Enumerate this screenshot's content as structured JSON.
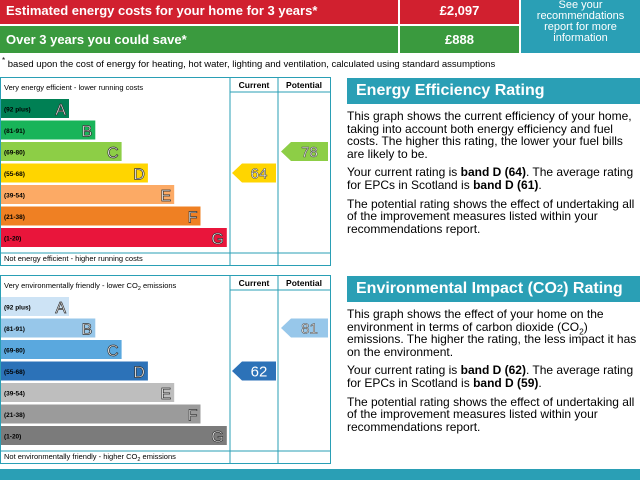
{
  "costs": {
    "rows": [
      {
        "label": "Estimated energy costs for your home for 3 years*",
        "value": "£2,097",
        "color": "#d1202f"
      },
      {
        "label": "Over 3 years you could save*",
        "value": "£888",
        "color": "#3a9a3e"
      }
    ],
    "note": "See your recommendations report for more information",
    "note_color": "#2a9fb5"
  },
  "footnote": {
    "mark": "*",
    "text": "based upon the cost of energy for heating, hot water, lighting and ventilation, calculated using standard assumptions"
  },
  "ratings": [
    {
      "top_label": [
        {
          "text": "Very energy efficient - lower running costs"
        }
      ],
      "bottom_label": [
        {
          "text": "Not energy efficient - higher running costs"
        }
      ],
      "column_headers": [
        "Current",
        "Potential"
      ],
      "bands": [
        {
          "range": "(92 plus)",
          "letter": "A",
          "color": "#008054"
        },
        {
          "range": "(81-91)",
          "letter": "B",
          "color": "#19b459"
        },
        {
          "range": "(69-80)",
          "letter": "C",
          "color": "#8dce46"
        },
        {
          "range": "(55-68)",
          "letter": "D",
          "color": "#ffd500"
        },
        {
          "range": "(39-54)",
          "letter": "E",
          "color": "#fcaa65"
        },
        {
          "range": "(21-38)",
          "letter": "F",
          "color": "#ef8023"
        },
        {
          "range": "(1-20)",
          "letter": "G",
          "color": "#e9153b"
        }
      ],
      "current": 64,
      "potential": 78,
      "title": [
        {
          "text": "Energy Efficiency Rating"
        }
      ],
      "paragraphs": [
        [
          {
            "text": "This graph shows the current efficiency of your home, taking into account both energy efficiency and fuel costs. The higher this rating, the lower your fuel bills are likely to be."
          }
        ],
        [
          {
            "text": "Your current rating is "
          },
          {
            "text": "band D (64)",
            "bold": true
          },
          {
            "text": ". The average rating for EPCs in Scotland is "
          },
          {
            "text": "band D (61)",
            "bold": true
          },
          {
            "text": "."
          }
        ],
        [
          {
            "text": "The potential rating shows the effect of undertaking all of the improvement measures listed within your recommendations report."
          }
        ]
      ]
    },
    {
      "top_label": [
        {
          "text": "Very environmentally friendly - lower CO"
        },
        {
          "text": "2",
          "sub": true
        },
        {
          "text": " emissions"
        }
      ],
      "bottom_label": [
        {
          "text": "Not environmentally friendly - higher CO"
        },
        {
          "text": "2",
          "sub": true
        },
        {
          "text": " emissions"
        }
      ],
      "column_headers": [
        "Current",
        "Potential"
      ],
      "bands": [
        {
          "range": "(92 plus)",
          "letter": "A",
          "color": "#cde3f5"
        },
        {
          "range": "(81-91)",
          "letter": "B",
          "color": "#97c7ea"
        },
        {
          "range": "(69-80)",
          "letter": "C",
          "color": "#5aa8de"
        },
        {
          "range": "(55-68)",
          "letter": "D",
          "color": "#2c72b8"
        },
        {
          "range": "(39-54)",
          "letter": "E",
          "color": "#bebebe"
        },
        {
          "range": "(21-38)",
          "letter": "F",
          "color": "#9b9b9b"
        },
        {
          "range": "(1-20)",
          "letter": "G",
          "color": "#7b7b7b"
        }
      ],
      "current": 62,
      "potential": 81,
      "title": [
        {
          "text": "Environmental Impact (CO"
        },
        {
          "text": "2",
          "sub": true
        },
        {
          "text": ") Rating"
        }
      ],
      "paragraphs": [
        [
          {
            "text": "This graph shows the effect of your home on the environment in terms of carbon dioxide (CO"
          },
          {
            "text": "2",
            "sub": true
          },
          {
            "text": ") emissions. The higher the rating, the less impact it has on the environment."
          }
        ],
        [
          {
            "text": "Your current rating is "
          },
          {
            "text": "band D (62)",
            "bold": true
          },
          {
            "text": ". The average rating for EPCs in Scotland is "
          },
          {
            "text": "band D (59)",
            "bold": true
          },
          {
            "text": "."
          }
        ],
        [
          {
            "text": "The potential rating shows the effect of undertaking all of the improvement measures listed within your recommendations report."
          }
        ]
      ]
    }
  ],
  "accent": "#2a9fb5"
}
